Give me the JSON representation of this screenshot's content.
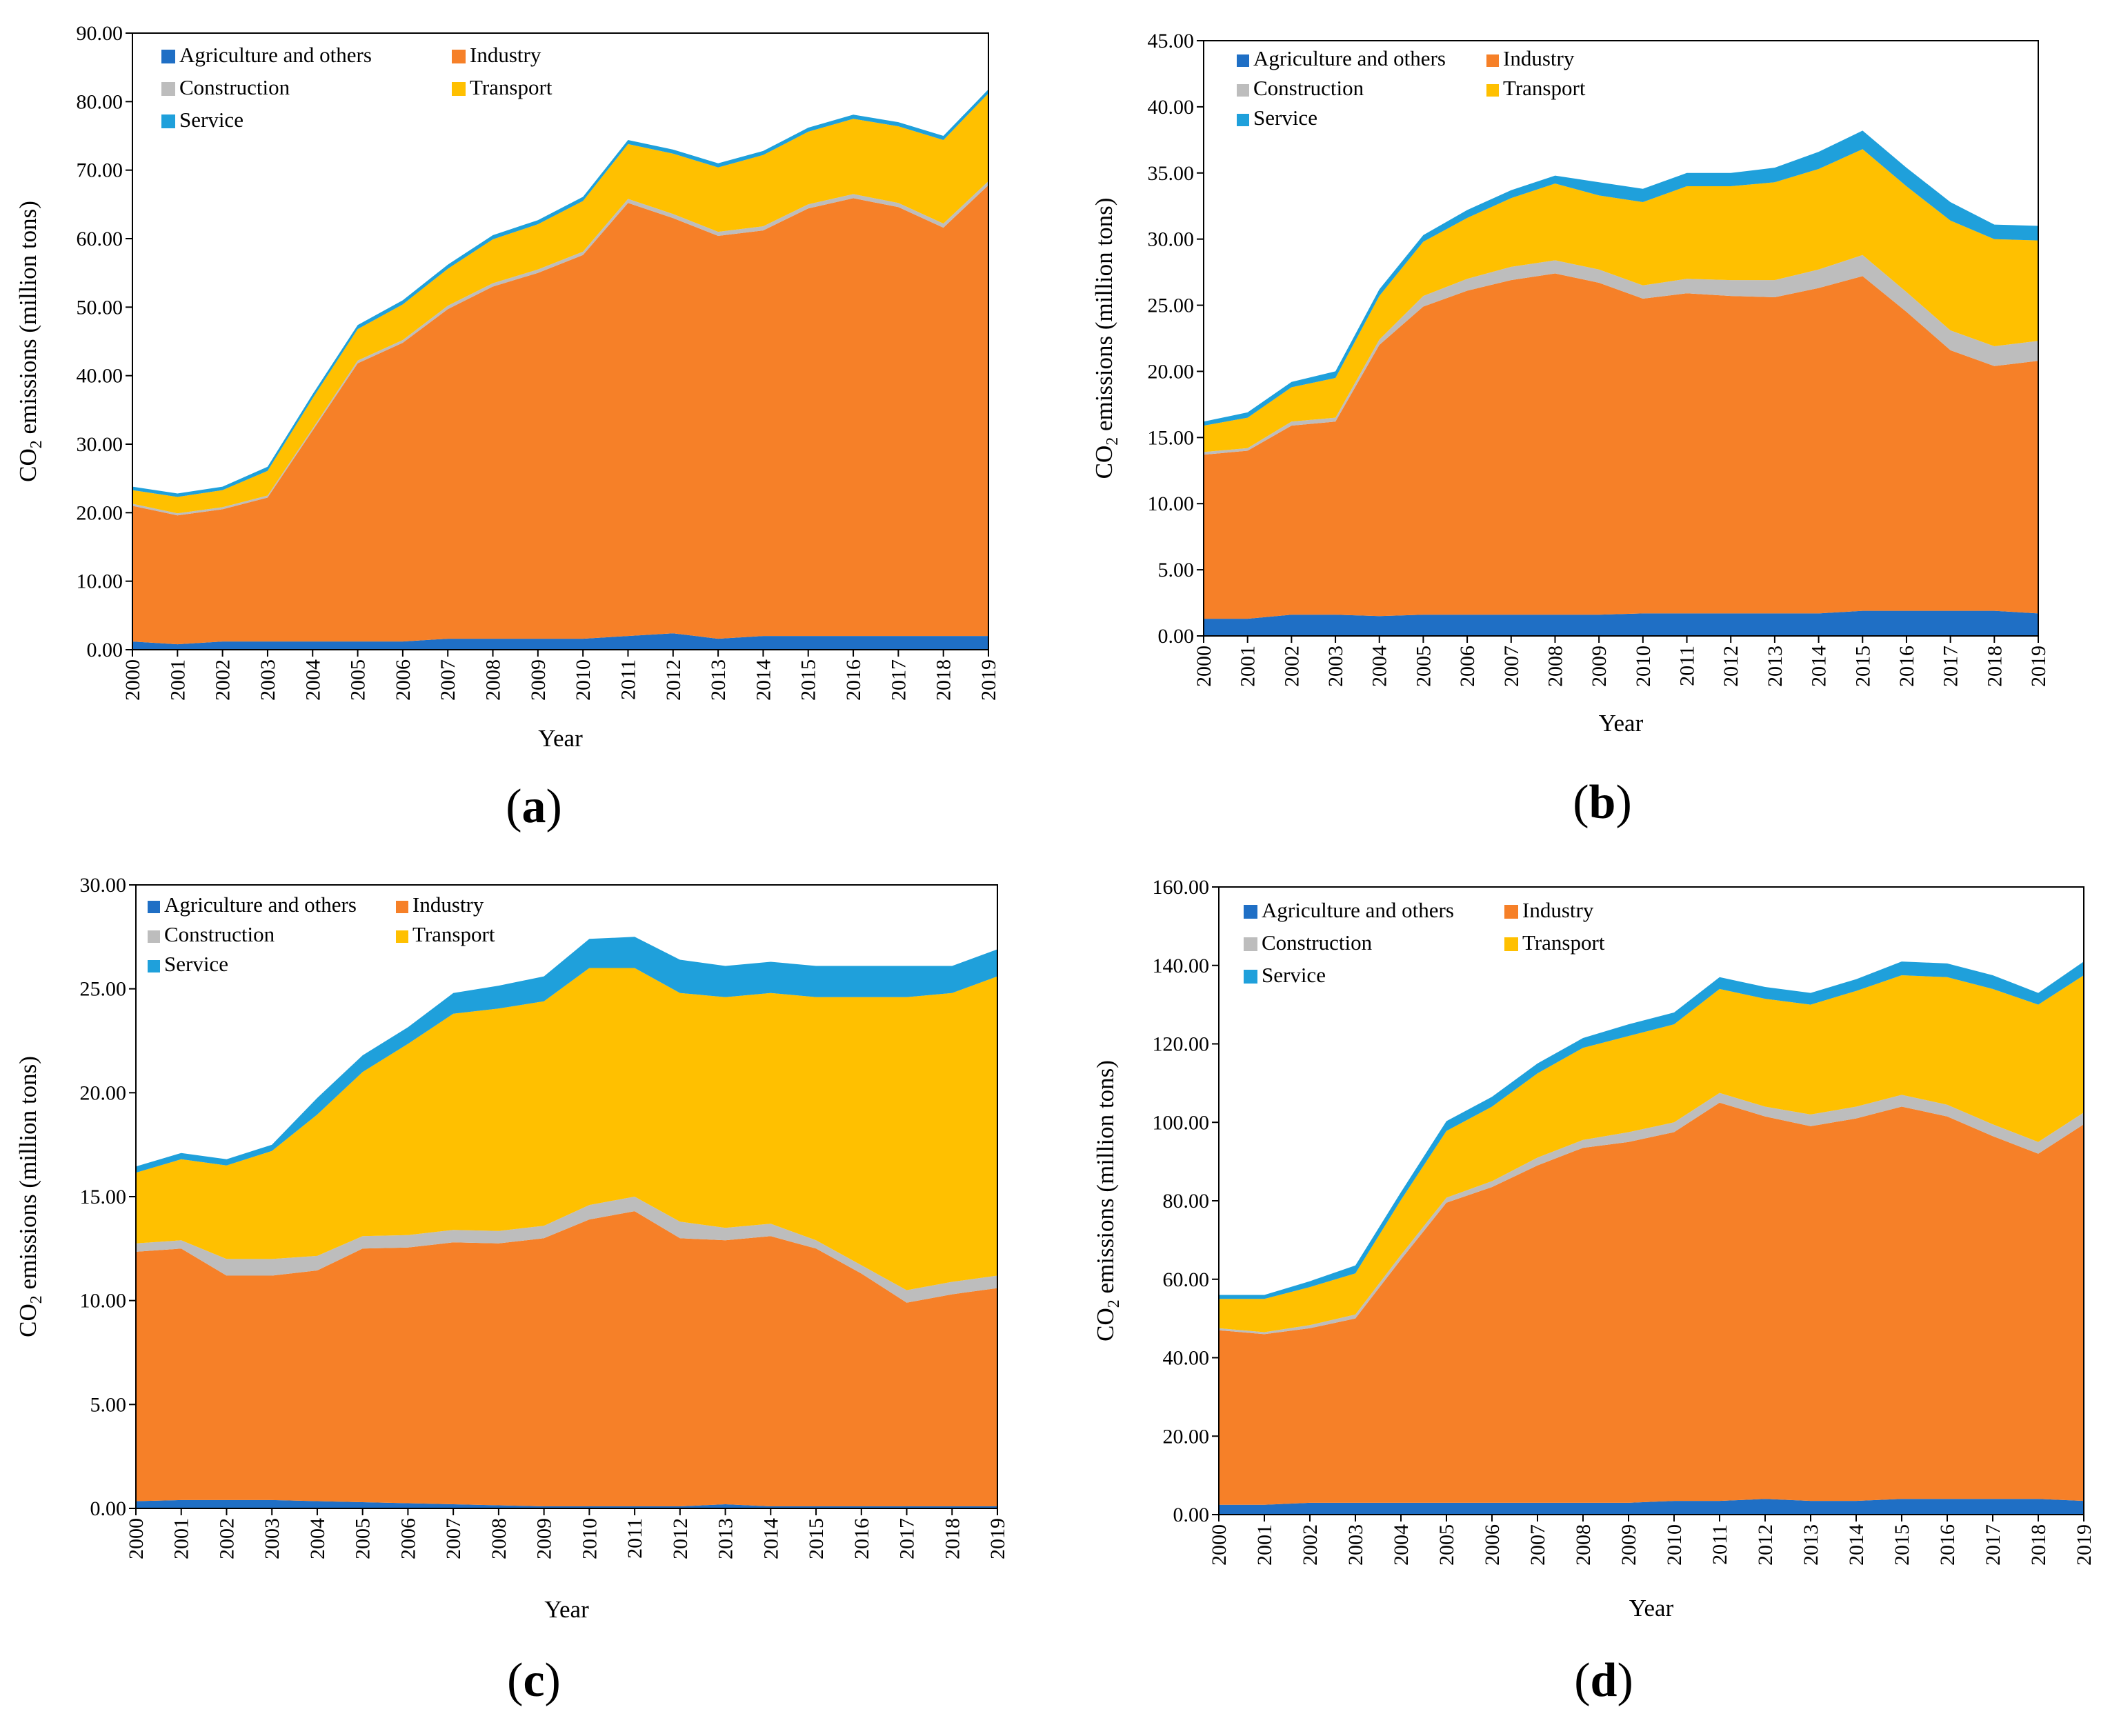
{
  "figure": {
    "panels": [
      "(a)",
      "(b)",
      "(c)",
      "(d)"
    ],
    "panel_labels": [
      {
        "open": "(",
        "letter": "a",
        "close": ")"
      },
      {
        "open": "(",
        "letter": "b",
        "close": ")"
      },
      {
        "open": "(",
        "letter": "c",
        "close": ")"
      },
      {
        "open": "(",
        "letter": "d",
        "close": ")"
      }
    ]
  },
  "colors": {
    "Agriculture and others": "#1F6FC5",
    "Industry": "#F68028",
    "Construction": "#BDBDBD",
    "Transport": "#FFC000",
    "Service": "#1FA0DB"
  },
  "chart_data": [
    {
      "type": "area",
      "stacked": true,
      "title": "",
      "panel_label": "(a)",
      "xlabel": "Year",
      "ylabel_prefix": "CO",
      "ylabel_sub": "2",
      "ylabel_suffix": " emissions (million tons)",
      "ylim": [
        0,
        90
      ],
      "ytick_step": 10,
      "yticks": [
        "0.00",
        "10.00",
        "20.00",
        "30.00",
        "40.00",
        "50.00",
        "60.00",
        "70.00",
        "80.00",
        "90.00"
      ],
      "grid": false,
      "legend_position": "top-left",
      "categories": [
        "2000",
        "2001",
        "2002",
        "2003",
        "2004",
        "2005",
        "2006",
        "2007",
        "2008",
        "2009",
        "2010",
        "2011",
        "2012",
        "2013",
        "2014",
        "2015",
        "2016",
        "2017",
        "2018",
        "2019"
      ],
      "series": [
        {
          "name": "Agriculture and others",
          "values": [
            1.2,
            0.8,
            1.2,
            1.2,
            1.2,
            1.2,
            1.2,
            1.6,
            1.6,
            1.6,
            1.6,
            2.0,
            2.4,
            1.6,
            2.0,
            2.0,
            2.0,
            2.0,
            2.0,
            2.0
          ]
        },
        {
          "name": "Industry",
          "values": [
            19.8,
            18.8,
            19.3,
            21.0,
            30.8,
            40.6,
            43.6,
            48.1,
            51.4,
            53.4,
            56.0,
            63.2,
            60.6,
            58.8,
            59.2,
            62.4,
            63.9,
            62.6,
            59.6,
            65.8
          ]
        },
        {
          "name": "Construction",
          "values": [
            0.3,
            0.3,
            0.3,
            0.3,
            0.3,
            0.4,
            0.4,
            0.5,
            0.5,
            0.5,
            0.5,
            0.6,
            0.6,
            0.6,
            0.6,
            0.6,
            0.6,
            0.6,
            0.6,
            0.6
          ]
        },
        {
          "name": "Transport",
          "values": [
            2.0,
            2.4,
            2.5,
            3.6,
            4.4,
            4.6,
            5.2,
            5.4,
            6.4,
            6.6,
            7.4,
            8.0,
            8.8,
            9.4,
            10.4,
            10.6,
            11.0,
            11.2,
            12.2,
            12.8
          ]
        },
        {
          "name": "Service",
          "values": [
            0.5,
            0.5,
            0.5,
            0.6,
            0.6,
            0.6,
            0.6,
            0.6,
            0.6,
            0.6,
            0.6,
            0.6,
            0.6,
            0.6,
            0.6,
            0.6,
            0.6,
            0.6,
            0.6,
            0.6
          ]
        }
      ]
    },
    {
      "type": "area",
      "stacked": true,
      "title": "",
      "panel_label": "(b)",
      "xlabel": "Year",
      "ylabel_prefix": "CO",
      "ylabel_sub": "2",
      "ylabel_suffix": " emissions (million tons)",
      "ylim": [
        0,
        45
      ],
      "ytick_step": 5,
      "yticks": [
        "0.00",
        "5.00",
        "10.00",
        "15.00",
        "20.00",
        "25.00",
        "30.00",
        "35.00",
        "40.00",
        "45.00"
      ],
      "grid": false,
      "legend_position": "top-left",
      "categories": [
        "2000",
        "2001",
        "2002",
        "2003",
        "2004",
        "2005",
        "2006",
        "2007",
        "2008",
        "2009",
        "2010",
        "2011",
        "2012",
        "2013",
        "2014",
        "2015",
        "2016",
        "2017",
        "2018",
        "2019"
      ],
      "series": [
        {
          "name": "Agriculture and others",
          "values": [
            1.3,
            1.3,
            1.6,
            1.6,
            1.5,
            1.6,
            1.6,
            1.6,
            1.6,
            1.6,
            1.7,
            1.7,
            1.7,
            1.7,
            1.7,
            1.9,
            1.9,
            1.9,
            1.9,
            1.7
          ]
        },
        {
          "name": "Industry",
          "values": [
            12.4,
            12.7,
            14.3,
            14.6,
            20.5,
            23.3,
            24.5,
            25.3,
            25.8,
            25.1,
            23.8,
            24.2,
            24.0,
            23.9,
            24.6,
            25.3,
            22.6,
            19.7,
            18.5,
            19.1
          ]
        },
        {
          "name": "Construction",
          "values": [
            0.2,
            0.2,
            0.3,
            0.3,
            0.4,
            0.8,
            0.9,
            1.0,
            1.0,
            1.0,
            1.0,
            1.1,
            1.2,
            1.3,
            1.4,
            1.6,
            1.5,
            1.5,
            1.5,
            1.5
          ]
        },
        {
          "name": "Transport",
          "values": [
            2.0,
            2.3,
            2.6,
            3.0,
            3.3,
            4.1,
            4.6,
            5.2,
            5.8,
            5.6,
            6.3,
            7.0,
            7.1,
            7.4,
            7.6,
            8.0,
            8.0,
            8.3,
            8.1,
            7.6
          ]
        },
        {
          "name": "Service",
          "values": [
            0.3,
            0.4,
            0.4,
            0.5,
            0.5,
            0.5,
            0.6,
            0.6,
            0.6,
            1.0,
            1.0,
            1.0,
            1.0,
            1.1,
            1.3,
            1.4,
            1.4,
            1.4,
            1.1,
            1.1
          ]
        }
      ]
    },
    {
      "type": "area",
      "stacked": true,
      "title": "",
      "panel_label": "(c)",
      "xlabel": "Year",
      "ylabel_prefix": "CO",
      "ylabel_sub": "2",
      "ylabel_suffix": " emissions (million tons)",
      "ylim": [
        0,
        30
      ],
      "ytick_step": 5,
      "yticks": [
        "0.00",
        "5.00",
        "10.00",
        "15.00",
        "20.00",
        "25.00",
        "30.00"
      ],
      "grid": false,
      "legend_position": "top-left",
      "categories": [
        "2000",
        "2001",
        "2002",
        "2003",
        "2004",
        "2005",
        "2006",
        "2007",
        "2008",
        "2009",
        "2010",
        "2011",
        "2012",
        "2013",
        "2014",
        "2015",
        "2016",
        "2017",
        "2018",
        "2019"
      ],
      "series": [
        {
          "name": "Agriculture and others",
          "values": [
            0.35,
            0.4,
            0.4,
            0.4,
            0.35,
            0.3,
            0.25,
            0.2,
            0.15,
            0.1,
            0.1,
            0.1,
            0.1,
            0.2,
            0.1,
            0.1,
            0.1,
            0.1,
            0.1,
            0.1
          ]
        },
        {
          "name": "Industry",
          "values": [
            12.0,
            12.1,
            10.8,
            10.8,
            11.1,
            12.2,
            12.3,
            12.6,
            12.6,
            12.9,
            13.8,
            14.2,
            12.9,
            12.7,
            13.0,
            12.4,
            11.2,
            9.8,
            10.2,
            10.5
          ]
        },
        {
          "name": "Construction",
          "values": [
            0.4,
            0.4,
            0.8,
            0.8,
            0.7,
            0.6,
            0.6,
            0.6,
            0.6,
            0.6,
            0.7,
            0.7,
            0.8,
            0.6,
            0.6,
            0.4,
            0.4,
            0.6,
            0.6,
            0.6
          ]
        },
        {
          "name": "Transport",
          "values": [
            3.4,
            3.9,
            4.5,
            5.2,
            6.8,
            7.9,
            9.2,
            10.4,
            10.7,
            10.8,
            11.4,
            11.0,
            11.0,
            11.1,
            11.1,
            11.7,
            12.9,
            14.1,
            13.9,
            14.4
          ]
        },
        {
          "name": "Service",
          "values": [
            0.3,
            0.3,
            0.3,
            0.3,
            0.8,
            0.8,
            0.8,
            1.0,
            1.1,
            1.2,
            1.4,
            1.5,
            1.6,
            1.5,
            1.5,
            1.5,
            1.5,
            1.5,
            1.3,
            1.3
          ]
        }
      ]
    },
    {
      "type": "area",
      "stacked": true,
      "title": "",
      "panel_label": "(d)",
      "xlabel": "Year",
      "ylabel_prefix": "CO",
      "ylabel_sub": "2",
      "ylabel_suffix": " emissions (million tons)",
      "ylim": [
        0,
        160
      ],
      "ytick_step": 20,
      "yticks": [
        "0.00",
        "20.00",
        "40.00",
        "60.00",
        "80.00",
        "100.00",
        "120.00",
        "140.00",
        "160.00"
      ],
      "grid": false,
      "legend_position": "top-left",
      "categories": [
        "2000",
        "2001",
        "2002",
        "2003",
        "2004",
        "2005",
        "2006",
        "2007",
        "2008",
        "2009",
        "2010",
        "2011",
        "2012",
        "2013",
        "2014",
        "2015",
        "2016",
        "2017",
        "2018",
        "2019"
      ],
      "series": [
        {
          "name": "Agriculture and others",
          "values": [
            2.5,
            2.5,
            3.0,
            3.0,
            3.0,
            3.0,
            3.0,
            3.0,
            3.0,
            3.0,
            3.5,
            3.5,
            4.0,
            3.5,
            3.5,
            4.0,
            4.0,
            4.0,
            4.0,
            3.5
          ]
        },
        {
          "name": "Industry",
          "values": [
            44.5,
            43.5,
            44.5,
            47.0,
            62.0,
            76.5,
            80.5,
            86.0,
            90.5,
            92.0,
            94.0,
            101.5,
            97.5,
            95.5,
            97.5,
            100.0,
            97.5,
            92.5,
            88.0,
            96.0
          ]
        },
        {
          "name": "Construction",
          "values": [
            0.5,
            0.5,
            0.8,
            1.0,
            1.2,
            1.3,
            1.5,
            2.0,
            2.0,
            2.5,
            2.5,
            2.5,
            2.5,
            3.0,
            3.0,
            3.0,
            3.0,
            3.0,
            3.0,
            3.0
          ]
        },
        {
          "name": "Transport",
          "values": [
            7.5,
            8.5,
            9.7,
            10.5,
            14.0,
            17.0,
            19.0,
            21.5,
            23.5,
            24.5,
            25.0,
            26.5,
            27.5,
            28.0,
            29.5,
            30.5,
            32.5,
            34.5,
            35.0,
            35.0
          ]
        },
        {
          "name": "Service",
          "values": [
            1.0,
            1.0,
            1.5,
            2.0,
            2.0,
            2.5,
            2.5,
            2.5,
            2.5,
            3.0,
            3.0,
            3.0,
            3.0,
            3.0,
            3.0,
            3.5,
            3.5,
            3.5,
            3.0,
            3.5
          ]
        }
      ]
    }
  ]
}
